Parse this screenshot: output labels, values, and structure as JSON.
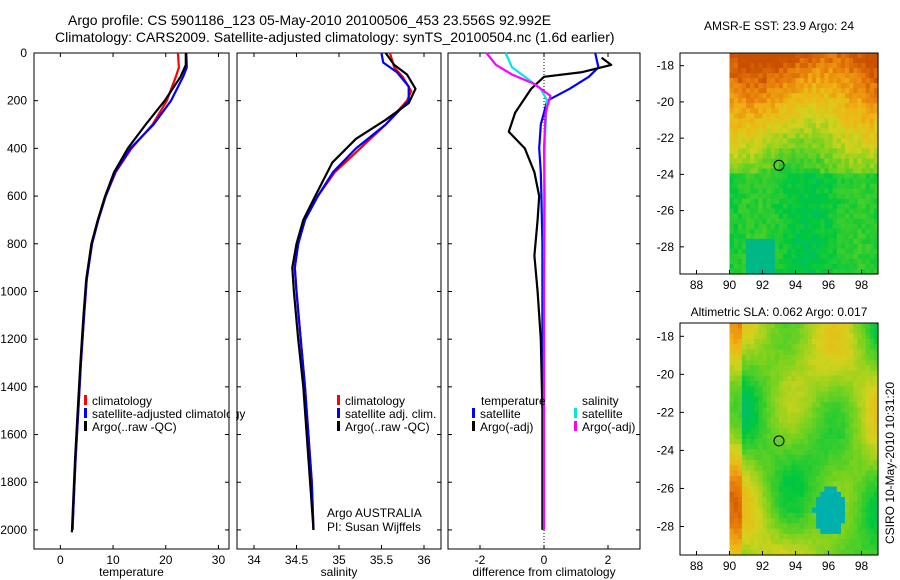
{
  "header": {
    "title_line1": "Argo profile: CS 5901186_123 05-May-2010 20100506_453 23.556S 92.992E",
    "title_line2": "Climatology: CARS2009. Satellite-adjusted climatology: synTS_20100504.nc (1.6d earlier)"
  },
  "side_label": "CSIRO 10-May-2010 10:31:20",
  "colors": {
    "climatology": "#ff0000",
    "satellite": "#0000ff",
    "argo": "#000000",
    "sal_satellite": "#00e5ee",
    "sal_argo": "#ff00ff"
  },
  "chart_data": [
    {
      "id": "temperature",
      "type": "line",
      "xlabel": "temperature",
      "ylabel": "",
      "xlim": [
        -5,
        32
      ],
      "ylim": [
        2080,
        0
      ],
      "xticks": [
        0,
        10,
        20,
        30
      ],
      "yticks": [
        0,
        200,
        400,
        600,
        800,
        1000,
        1200,
        1400,
        1600,
        1800,
        2000
      ],
      "legend": [
        "climatology",
        "satellite-adjusted climatology",
        "Argo(..raw -QC)"
      ],
      "series": [
        {
          "name": "climatology",
          "color": "#ff0000",
          "points": [
            [
              22.3,
              0
            ],
            [
              22.5,
              60
            ],
            [
              21.9,
              100
            ],
            [
              20.2,
              200
            ],
            [
              17.5,
              300
            ],
            [
              13.5,
              400
            ],
            [
              10.5,
              500
            ],
            [
              8.6,
              600
            ],
            [
              7.2,
              700
            ],
            [
              6.0,
              800
            ],
            [
              5.0,
              950
            ],
            [
              4.5,
              1100
            ],
            [
              3.9,
              1300
            ],
            [
              3.4,
              1500
            ],
            [
              2.9,
              1700
            ],
            [
              2.5,
              1900
            ],
            [
              2.3,
              2000
            ]
          ]
        },
        {
          "name": "satellite",
          "color": "#0000ff",
          "points": [
            [
              23.9,
              0
            ],
            [
              24.0,
              60
            ],
            [
              23.3,
              100
            ],
            [
              21.0,
              200
            ],
            [
              17.7,
              300
            ],
            [
              13.3,
              400
            ],
            [
              10.4,
              500
            ],
            [
              8.6,
              600
            ],
            [
              7.2,
              700
            ],
            [
              6.0,
              800
            ],
            [
              5.0,
              950
            ],
            [
              4.5,
              1100
            ],
            [
              3.9,
              1300
            ],
            [
              3.4,
              1500
            ],
            [
              2.9,
              1700
            ],
            [
              2.5,
              1900
            ],
            [
              2.3,
              2000
            ]
          ]
        },
        {
          "name": "Argo",
          "color": "#000000",
          "points": [
            [
              23.8,
              0
            ],
            [
              23.8,
              50
            ],
            [
              22.8,
              100
            ],
            [
              19.8,
              200
            ],
            [
              16.2,
              300
            ],
            [
              12.8,
              400
            ],
            [
              10.2,
              500
            ],
            [
              8.5,
              600
            ],
            [
              7.1,
              700
            ],
            [
              5.9,
              800
            ],
            [
              4.9,
              950
            ],
            [
              4.4,
              1100
            ],
            [
              3.8,
              1300
            ],
            [
              3.3,
              1500
            ],
            [
              2.8,
              1700
            ],
            [
              2.4,
              1900
            ],
            [
              2.2,
              2010
            ]
          ]
        }
      ]
    },
    {
      "id": "salinity",
      "type": "line",
      "xlabel": "salinity",
      "ylabel": "",
      "xlim": [
        33.8,
        36.2
      ],
      "ylim": [
        2080,
        0
      ],
      "xticks": [
        34,
        34.5,
        35,
        35.5,
        36
      ],
      "legend": [
        "climatology",
        "satellite adj. clim.",
        "Argo(..raw -QC)"
      ],
      "annotation": [
        "Argo AUSTRALIA",
        "PI: Susan Wijffels"
      ],
      "series": [
        {
          "name": "climatology",
          "color": "#ff0000",
          "points": [
            [
              35.6,
              0
            ],
            [
              35.65,
              60
            ],
            [
              35.75,
              100
            ],
            [
              35.85,
              160
            ],
            [
              35.8,
              200
            ],
            [
              35.55,
              300
            ],
            [
              35.25,
              400
            ],
            [
              34.95,
              500
            ],
            [
              34.75,
              600
            ],
            [
              34.6,
              700
            ],
            [
              34.52,
              800
            ],
            [
              34.48,
              900
            ],
            [
              34.5,
              1000
            ],
            [
              34.55,
              1200
            ],
            [
              34.6,
              1400
            ],
            [
              34.64,
              1600
            ],
            [
              34.68,
              1800
            ],
            [
              34.7,
              2000
            ]
          ]
        },
        {
          "name": "satellite",
          "color": "#0000ff",
          "points": [
            [
              35.5,
              0
            ],
            [
              35.52,
              40
            ],
            [
              35.68,
              80
            ],
            [
              35.82,
              140
            ],
            [
              35.82,
              200
            ],
            [
              35.55,
              300
            ],
            [
              35.2,
              400
            ],
            [
              34.93,
              500
            ],
            [
              34.75,
              600
            ],
            [
              34.6,
              700
            ],
            [
              34.52,
              800
            ],
            [
              34.48,
              900
            ],
            [
              34.5,
              1000
            ],
            [
              34.55,
              1200
            ],
            [
              34.6,
              1400
            ],
            [
              34.64,
              1600
            ],
            [
              34.68,
              1800
            ],
            [
              34.7,
              2000
            ]
          ]
        },
        {
          "name": "Argo",
          "color": "#000000",
          "points": [
            [
              35.55,
              0
            ],
            [
              35.65,
              50
            ],
            [
              35.8,
              90
            ],
            [
              35.9,
              150
            ],
            [
              35.82,
              210
            ],
            [
              35.55,
              280
            ],
            [
              35.2,
              360
            ],
            [
              34.92,
              460
            ],
            [
              34.72,
              600
            ],
            [
              34.58,
              700
            ],
            [
              34.5,
              800
            ],
            [
              34.45,
              900
            ],
            [
              34.47,
              1000
            ],
            [
              34.52,
              1200
            ],
            [
              34.58,
              1400
            ],
            [
              34.62,
              1600
            ],
            [
              34.66,
              1800
            ],
            [
              34.7,
              2000
            ]
          ]
        }
      ]
    },
    {
      "id": "difference",
      "type": "line",
      "xlabel": "difference from climatology",
      "ylabel": "",
      "xlim": [
        -3,
        3
      ],
      "ylim": [
        2080,
        0
      ],
      "xticks": [
        -2,
        0,
        2
      ],
      "legend_left_title": "temperature",
      "legend_right_title": "salinity",
      "legend_left": [
        "satellite",
        "Argo(-adj)"
      ],
      "legend_right": [
        "satellite",
        "Argo(-adj)"
      ],
      "series": [
        {
          "name": "temperature satellite",
          "color": "#0000ff",
          "points": [
            [
              1.6,
              0
            ],
            [
              1.7,
              60
            ],
            [
              1.4,
              100
            ],
            [
              0.8,
              150
            ],
            [
              0.1,
              200
            ],
            [
              -0.1,
              300
            ],
            [
              -0.15,
              400
            ],
            [
              -0.1,
              500
            ],
            [
              -0.08,
              600
            ],
            [
              -0.05,
              800
            ],
            [
              -0.05,
              1000
            ],
            [
              -0.05,
              1300
            ],
            [
              -0.03,
              1600
            ],
            [
              -0.02,
              2000
            ]
          ]
        },
        {
          "name": "temperature Argo",
          "color": "#000000",
          "points": [
            [
              1.8,
              20
            ],
            [
              2.1,
              50
            ],
            [
              1.2,
              80
            ],
            [
              0.0,
              100
            ],
            [
              -0.4,
              150
            ],
            [
              -0.9,
              250
            ],
            [
              -1.1,
              330
            ],
            [
              -0.6,
              400
            ],
            [
              -0.3,
              500
            ],
            [
              -0.15,
              600
            ],
            [
              -0.2,
              700
            ],
            [
              -0.3,
              850
            ],
            [
              -0.2,
              1000
            ],
            [
              -0.1,
              1200
            ],
            [
              -0.05,
              1500
            ],
            [
              -0.05,
              1800
            ],
            [
              -0.05,
              2000
            ]
          ]
        },
        {
          "name": "salinity satellite",
          "color": "#00e5ee",
          "points": [
            [
              -1.2,
              0
            ],
            [
              -1.0,
              60
            ],
            [
              -0.6,
              100
            ],
            [
              -0.1,
              150
            ],
            [
              0.1,
              200
            ],
            [
              0.05,
              300
            ],
            [
              0.02,
              400
            ],
            [
              0.0,
              600
            ],
            [
              0.0,
              1000
            ],
            [
              0.0,
              1500
            ],
            [
              0.0,
              2000
            ]
          ]
        },
        {
          "name": "salinity Argo",
          "color": "#ff00ff",
          "points": [
            [
              -1.8,
              0
            ],
            [
              -1.5,
              50
            ],
            [
              -1.0,
              90
            ],
            [
              -0.3,
              130
            ],
            [
              0.2,
              180
            ],
            [
              0.05,
              250
            ],
            [
              0.0,
              400
            ],
            [
              0.02,
              600
            ],
            [
              0.0,
              1000
            ],
            [
              0.0,
              1500
            ],
            [
              0.0,
              2000
            ]
          ]
        }
      ]
    },
    {
      "id": "sst_map",
      "type": "heatmap",
      "title": "AMSR-E SST: 23.9 Argo: 24",
      "xlim": [
        87,
        99
      ],
      "ylim": [
        -29.5,
        -17.3
      ],
      "xticks": [
        88,
        90,
        92,
        94,
        96,
        98
      ],
      "yticks": [
        -18,
        -20,
        -22,
        -24,
        -26,
        -28
      ],
      "data_xrange": [
        90,
        99
      ],
      "marker": {
        "lon": 93.0,
        "lat": -23.5
      }
    },
    {
      "id": "sla_map",
      "type": "heatmap",
      "title": "Altimetric SLA: 0.062 Argo: 0.017",
      "xlim": [
        87,
        99
      ],
      "ylim": [
        -29.5,
        -17.3
      ],
      "xticks": [
        88,
        90,
        92,
        94,
        96,
        98
      ],
      "yticks": [
        -18,
        -20,
        -22,
        -24,
        -26,
        -28
      ],
      "data_xrange": [
        90,
        99
      ],
      "marker": {
        "lon": 93.0,
        "lat": -23.5
      }
    }
  ]
}
